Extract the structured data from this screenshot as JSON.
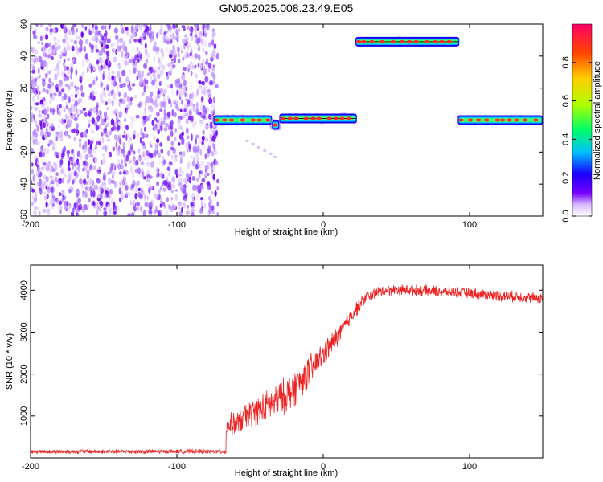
{
  "figure": {
    "title": "GN05.2025.008.23.49.E05"
  },
  "chart_data": [
    {
      "type": "heatmap",
      "xlabel": "Height of straight line (km)",
      "ylabel": "Frequency (Hz)",
      "xlim": [
        -200,
        150
      ],
      "ylim": [
        -60,
        60
      ],
      "xticks": [
        -200,
        -100,
        0,
        100
      ],
      "yticks": [
        -60,
        -40,
        -20,
        0,
        20,
        40,
        60
      ],
      "grid": false,
      "colorbar": {
        "label": "Normalized spectral amplitude",
        "range": [
          0,
          1
        ],
        "ticks": [
          0.0,
          0.2,
          0.4,
          0.6,
          0.8
        ],
        "colormap": [
          "#ffffff",
          "#c8a0ff",
          "#7700ff",
          "#0000ff",
          "#00ccff",
          "#00ff66",
          "#aaff00",
          "#ffcc00",
          "#ff5500",
          "#ff0066"
        ]
      },
      "noise_region": {
        "x_range": [
          -200,
          -72
        ],
        "freq_range": [
          -60,
          60
        ],
        "amplitude": 0.15
      },
      "segments": [
        {
          "x_start": -75,
          "x_end": -35,
          "freq": 0,
          "peak_amplitude": 1.0
        },
        {
          "x_start": -35,
          "x_end": -30,
          "freq": -3,
          "peak_amplitude": 0.8
        },
        {
          "x_start": -30,
          "x_end": 23,
          "freq": 1,
          "peak_amplitude": 1.0
        },
        {
          "x_start": 22,
          "x_end": 93,
          "freq": 49,
          "peak_amplitude": 1.0
        },
        {
          "x_start": 92,
          "x_end": 150,
          "freq": 0,
          "peak_amplitude": 1.0
        }
      ],
      "faint_trail": {
        "x": [
          -52,
          -48,
          -44,
          -40,
          -36,
          -33
        ],
        "freq": [
          -13,
          -15,
          -17,
          -19,
          -21,
          -23
        ]
      }
    },
    {
      "type": "line",
      "xlabel": "Height of straight line (km)",
      "ylabel": "SNR (10 * v/v)",
      "xlim": [
        -200,
        150
      ],
      "ylim": [
        0,
        4600
      ],
      "xticks": [
        -200,
        -100,
        0,
        100
      ],
      "yticks": [
        1000,
        2000,
        3000,
        4000
      ],
      "grid": false,
      "color": "#ee2222",
      "series": [
        {
          "x": [
            -200,
            -180,
            -160,
            -140,
            -120,
            -100,
            -80,
            -67,
            -66,
            -60,
            -50,
            -40,
            -30,
            -20,
            -10,
            0,
            10,
            20,
            30,
            40,
            50,
            60,
            70,
            80,
            90,
            100,
            110,
            120,
            130,
            140,
            150
          ],
          "values": [
            150,
            150,
            150,
            150,
            150,
            150,
            150,
            150,
            800,
            800,
            1050,
            1200,
            1400,
            1650,
            2050,
            2450,
            2900,
            3450,
            3850,
            3980,
            4020,
            4000,
            3990,
            3970,
            3950,
            3930,
            3900,
            3870,
            3850,
            3830,
            3810
          ],
          "noise_amplitude": [
            60,
            60,
            60,
            60,
            60,
            60,
            60,
            60,
            300,
            320,
            380,
            420,
            480,
            520,
            450,
            350,
            280,
            220,
            170,
            150,
            150,
            150,
            150,
            150,
            150,
            150,
            150,
            150,
            150,
            150,
            150
          ]
        }
      ]
    }
  ]
}
